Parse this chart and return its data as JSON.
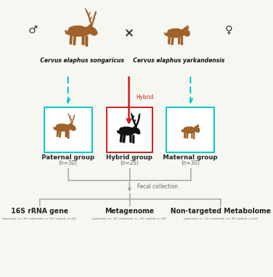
{
  "bg_color": "#f7f7f2",
  "deer_brown": "#A0622A",
  "deer_black": "#111111",
  "cyan_border": "#00C8C8",
  "red_border": "#CC2222",
  "red_arrow": "#CC2222",
  "cyan_arrow": "#00C8C8",
  "gray_line": "#999999",
  "text_dark": "#222222",
  "text_gray": "#666666",
  "male_label": "♂",
  "female_label": "♀",
  "species_left": "Cervus elaphus songaricus",
  "species_right": "Cervus elaphus yarkandensis",
  "cross_symbol": "×",
  "hybrid_label": "Hybrid",
  "group_paternal": "Paternal group",
  "group_hybrid": "Hybrid group",
  "group_maternal": "Maternal group",
  "n_paternal": "(n=30)",
  "n_hybrid": "(n=26)",
  "n_maternal": "(n=30)",
  "fecal_label": "Fecal collection",
  "analysis_1": "16S rRNA gene",
  "analysis_2": "Metagenome",
  "analysis_3": "Non-targeted Metabolome",
  "sub_1": "(paternal, n= 30; maternal, n= 30; hybrid, n=26)",
  "sub_2": "(paternal, n= 20; maternal, n= 20; hybrid, n=20)",
  "sub_3": "(paternal, n= 10; maternal, n= 10; hybrid, n=10)"
}
